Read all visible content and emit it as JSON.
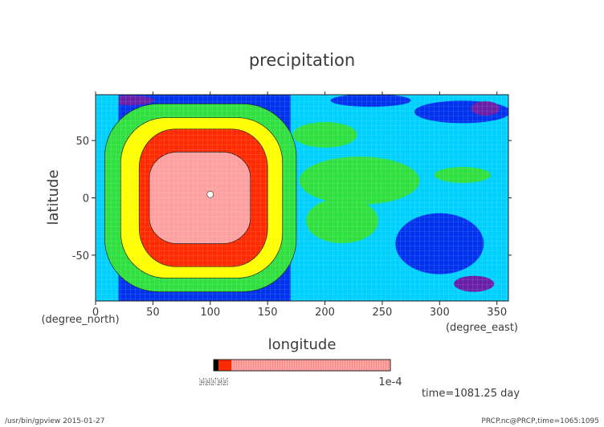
{
  "chart_data": {
    "type": "heatmap",
    "title": "precipitation",
    "xlabel": "longitude",
    "x_unit": "(degree_east)",
    "ylabel": "latitude",
    "y_unit": "(degree_north)",
    "xlim": [
      0,
      360
    ],
    "ylim": [
      -90,
      90
    ],
    "x_ticks": [
      0,
      50,
      100,
      150,
      200,
      250,
      300,
      350
    ],
    "y_ticks": [
      -50,
      0,
      50
    ],
    "colorbar": {
      "left_labels": "1e-9 1e-8 1e-7 1e-6 1e-5",
      "right_label": "1e-4"
    },
    "time_label": "time=1081.25 day",
    "palette": {
      "lowest": "#6a1fa8",
      "low": "#0033ee",
      "medium_low": "#00d0ff",
      "medium": "#30e040",
      "medium_high": "#ffff00",
      "high": "#ff2a00",
      "highest": "#ffa0a0"
    },
    "rings": [
      {
        "level": "medium",
        "lon": [
          8,
          175
        ],
        "lat": [
          -82,
          82
        ],
        "color": "#30e040"
      },
      {
        "level": "medium_high",
        "lon": [
          22,
          163
        ],
        "lat": [
          -70,
          70
        ],
        "color": "#ffff00"
      },
      {
        "level": "high",
        "lon": [
          38,
          150
        ],
        "lat": [
          -60,
          60
        ],
        "color": "#ff2a00"
      },
      {
        "level": "highest",
        "lon": [
          47,
          135
        ],
        "lat": [
          -40,
          40
        ],
        "color": "#ffa0a0"
      }
    ]
  },
  "footer": {
    "left": "/usr/bin/gpview  2015-01-27",
    "right": "PRCP.nc@PRCP,time=1065:1095"
  }
}
